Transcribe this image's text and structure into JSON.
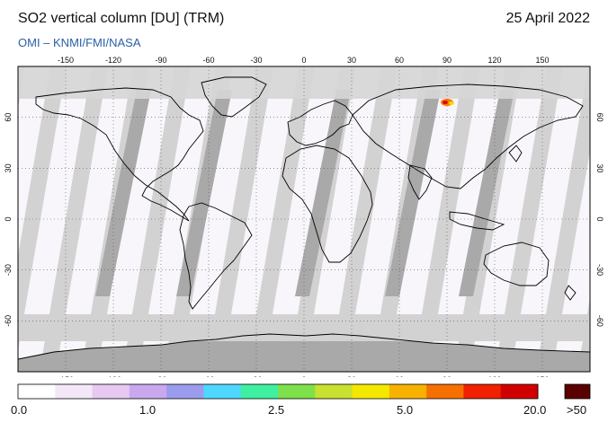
{
  "header": {
    "title": "SO2 vertical column [DU] (TRM)",
    "date": "25 April 2022",
    "subtitle": "OMI  –  KNMI/FMI/NASA"
  },
  "map": {
    "type": "world-map",
    "lon_ticks": [
      "-150",
      "-120",
      "-90",
      "-60",
      "-30",
      "0",
      "30",
      "60",
      "90",
      "120",
      "150"
    ],
    "lat_ticks": [
      "60",
      "30",
      "0",
      "-30",
      "-60"
    ],
    "lon_range": [
      -180,
      180
    ],
    "lat_range": [
      -90,
      90
    ],
    "grid": "dotted",
    "colors": {
      "land_missing": "#a8a8a8",
      "swath_gap": "#d0d0d0",
      "swath_data": "#f8f6fa",
      "coastline": "#000000",
      "plume": "#ff7a00"
    },
    "hotspot": {
      "lon": 97,
      "lat": 62,
      "note_value": "high"
    }
  },
  "colorbar": {
    "labels": [
      "0.0",
      "1.0",
      "2.5",
      "5.0",
      "20.0",
      ">50"
    ],
    "colors": [
      "#ffffff",
      "#f4e8f8",
      "#e6c8f0",
      "#c9a8ee",
      "#9c9cee",
      "#4fd7ff",
      "#3ef0a0",
      "#7ee04a",
      "#c8e030",
      "#f4e800",
      "#f7b200",
      "#f57000",
      "#f02000",
      "#d00000",
      "#5a0000"
    ]
  }
}
